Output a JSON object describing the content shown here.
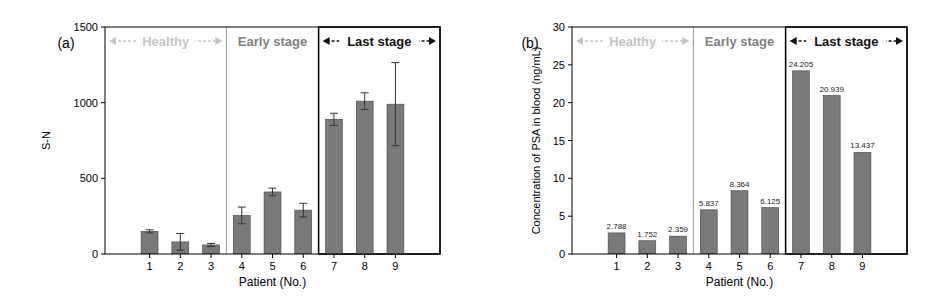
{
  "chart_data": [
    {
      "type": "bar",
      "title": "(a)",
      "x_label": "Patient (No.)",
      "y_label": "S-N",
      "categories": [
        "1",
        "2",
        "3",
        "4",
        "5",
        "6",
        "7",
        "8",
        "9"
      ],
      "values": [
        150,
        80,
        60,
        255,
        410,
        290,
        890,
        1010,
        990
      ],
      "errors": [
        10,
        55,
        10,
        55,
        25,
        45,
        40,
        55,
        275
      ],
      "color": "#7a7a7a",
      "ylim": [
        0,
        1500
      ],
      "yticks": [
        0,
        500,
        1000,
        1500
      ],
      "annotations": [
        {
          "text": "Healthy",
          "color": "#c4c4c4"
        },
        {
          "text": "Early stage",
          "color": "#808080"
        },
        {
          "text": "Last stage",
          "color": "#111111"
        }
      ]
    },
    {
      "type": "bar",
      "title": "(b)",
      "x_label": "Patient (No.)",
      "y_label": "Concentration of PSA in blood (ng/mL)",
      "categories": [
        "1",
        "2",
        "3",
        "4",
        "5",
        "6",
        "7",
        "8",
        "9"
      ],
      "values": [
        2.788,
        1.752,
        2.359,
        5.837,
        8.364,
        6.125,
        24.205,
        20.939,
        13.437
      ],
      "data_labels": true,
      "color": "#7a7a7a",
      "ylim": [
        0,
        30
      ],
      "yticks": [
        0,
        5,
        10,
        15,
        20,
        25,
        30
      ],
      "annotations": [
        {
          "text": "Healthy",
          "color": "#c4c4c4"
        },
        {
          "text": "Early stage",
          "color": "#808080"
        },
        {
          "text": "Last stage",
          "color": "#111111"
        }
      ]
    }
  ]
}
